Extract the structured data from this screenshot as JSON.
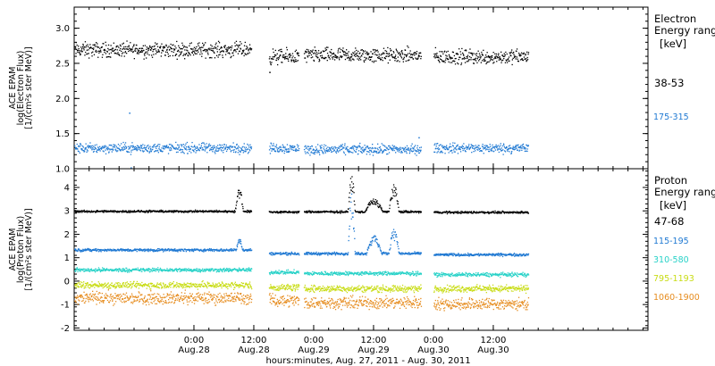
{
  "chart_data": [
    {
      "type": "scatter",
      "instrument": "ACE EPAM",
      "ylabel_line1": "ACE EPAM",
      "ylabel_line2": "log(Electron Flux)",
      "ylabel_line3": "[1/(cm²s ster MeV)]",
      "ylim": [
        1.0,
        3.3
      ],
      "yticks": [
        "1.0",
        "1.5",
        "2.0",
        "2.5",
        "3.0"
      ],
      "ytick_values": [
        1.0,
        1.5,
        2.0,
        2.5,
        3.0
      ],
      "legend_title_line1": "Electron",
      "legend_title_line2": "Energy ranges",
      "legend_unit": "[keV]",
      "series": [
        {
          "name": "38-53",
          "color": "#000000",
          "base": 2.65,
          "scatter": 0.09,
          "segments": [
            {
              "start": 0,
              "end": 35.5,
              "base": 2.7
            },
            {
              "start": 39,
              "end": 45,
              "base": 2.6
            },
            {
              "start": 46,
              "end": 69.5,
              "base": 2.62
            },
            {
              "start": 72,
              "end": 91,
              "base": 2.6
            }
          ],
          "outliers": [
            {
              "x": 39.1,
              "y": 2.38
            }
          ]
        },
        {
          "name": "175-315",
          "color": "#1e78d2",
          "base": 1.3,
          "scatter": 0.06,
          "segments": [
            {
              "start": 0,
              "end": 35.5,
              "base": 1.3
            },
            {
              "start": 39,
              "end": 45,
              "base": 1.3
            },
            {
              "start": 46,
              "end": 69.5,
              "base": 1.28
            },
            {
              "start": 72,
              "end": 91,
              "base": 1.3
            }
          ],
          "outliers": [
            {
              "x": 11,
              "y": 1.8
            },
            {
              "x": 11.3,
              "y": 1.02
            },
            {
              "x": 69,
              "y": 1.45
            }
          ]
        }
      ]
    },
    {
      "type": "scatter",
      "instrument": "ACE EPAM",
      "ylabel_line1": "ACE EPAM",
      "ylabel_line2": "log(Proton Flux)",
      "ylabel_line3": "[1/(cm²s ster MeV)]",
      "ylim": [
        -2.1,
        4.8
      ],
      "yticks": [
        "-2",
        "-1",
        "0",
        "1",
        "2",
        "3",
        "4"
      ],
      "ytick_values": [
        -2,
        -1,
        0,
        1,
        2,
        3,
        4
      ],
      "legend_title_line1": "Proton",
      "legend_title_line2": "Energy ranges",
      "legend_unit": "[keV]",
      "series": [
        {
          "name": "47-68",
          "color": "#000000",
          "scatter": 0.04,
          "segments": [
            {
              "start": 0,
              "end": 35.5,
              "base": 3.0
            },
            {
              "start": 39,
              "end": 45,
              "base": 2.97
            },
            {
              "start": 46,
              "end": 69.5,
              "base": 2.98
            },
            {
              "start": 72,
              "end": 91,
              "base": 2.96
            }
          ],
          "events": [
            {
              "center": 33,
              "width": 0.8,
              "peak": 0.9
            },
            {
              "center": 55.5,
              "width": 0.7,
              "peak": 1.5
            },
            {
              "center": 60,
              "width": 1.8,
              "peak": 0.5
            },
            {
              "center": 64,
              "width": 1.0,
              "peak": 1.1
            }
          ]
        },
        {
          "name": "115-195",
          "color": "#1e78d2",
          "scatter": 0.05,
          "segments": [
            {
              "start": 0,
              "end": 35.5,
              "base": 1.35
            },
            {
              "start": 39,
              "end": 45,
              "base": 1.2
            },
            {
              "start": 46,
              "end": 69.5,
              "base": 1.2
            },
            {
              "start": 72,
              "end": 91,
              "base": 1.15
            }
          ],
          "events": [
            {
              "center": 33,
              "width": 0.6,
              "peak": 0.5
            },
            {
              "center": 55.5,
              "width": 0.7,
              "peak": 2.5
            },
            {
              "center": 60,
              "width": 1.5,
              "peak": 0.7
            },
            {
              "center": 64,
              "width": 1.0,
              "peak": 1.0
            }
          ]
        },
        {
          "name": "310-580",
          "color": "#28d2c8",
          "scatter": 0.07,
          "segments": [
            {
              "start": 0,
              "end": 35.5,
              "base": 0.5
            },
            {
              "start": 39,
              "end": 45,
              "base": 0.4
            },
            {
              "start": 46,
              "end": 69.5,
              "base": 0.35
            },
            {
              "start": 72,
              "end": 91,
              "base": 0.3
            }
          ],
          "events": []
        },
        {
          "name": "795-1193",
          "color": "#c8dc14",
          "scatter": 0.12,
          "segments": [
            {
              "start": 0,
              "end": 35.5,
              "base": -0.15
            },
            {
              "start": 39,
              "end": 45,
              "base": -0.25
            },
            {
              "start": 46,
              "end": 69.5,
              "base": -0.3
            },
            {
              "start": 72,
              "end": 91,
              "base": -0.3
            }
          ],
          "events": []
        },
        {
          "name": "1060-1900",
          "color": "#e68c1e",
          "scatter": 0.22,
          "segments": [
            {
              "start": 0,
              "end": 35.5,
              "base": -0.7
            },
            {
              "start": 39,
              "end": 45,
              "base": -0.8
            },
            {
              "start": 46,
              "end": 69.5,
              "base": -0.9
            },
            {
              "start": 72,
              "end": 91,
              "base": -0.95
            }
          ],
          "events": []
        }
      ]
    }
  ],
  "x_axis": {
    "unit": "hours since start of Aug. 27, 2011",
    "xlim": [
      0,
      115
    ],
    "ticks": [
      {
        "x": 24,
        "time": "0:00",
        "date": "Aug.28"
      },
      {
        "x": 36,
        "time": "12:00",
        "date": "Aug.28"
      },
      {
        "x": 48,
        "time": "0:00",
        "date": "Aug.29"
      },
      {
        "x": 60,
        "time": "12:00",
        "date": "Aug.29"
      },
      {
        "x": 72,
        "time": "0:00",
        "date": "Aug.30"
      },
      {
        "x": 84,
        "time": "12:00",
        "date": "Aug.30"
      }
    ],
    "label": "hours:minutes, Aug. 27, 2011 - Aug. 30, 2011"
  }
}
